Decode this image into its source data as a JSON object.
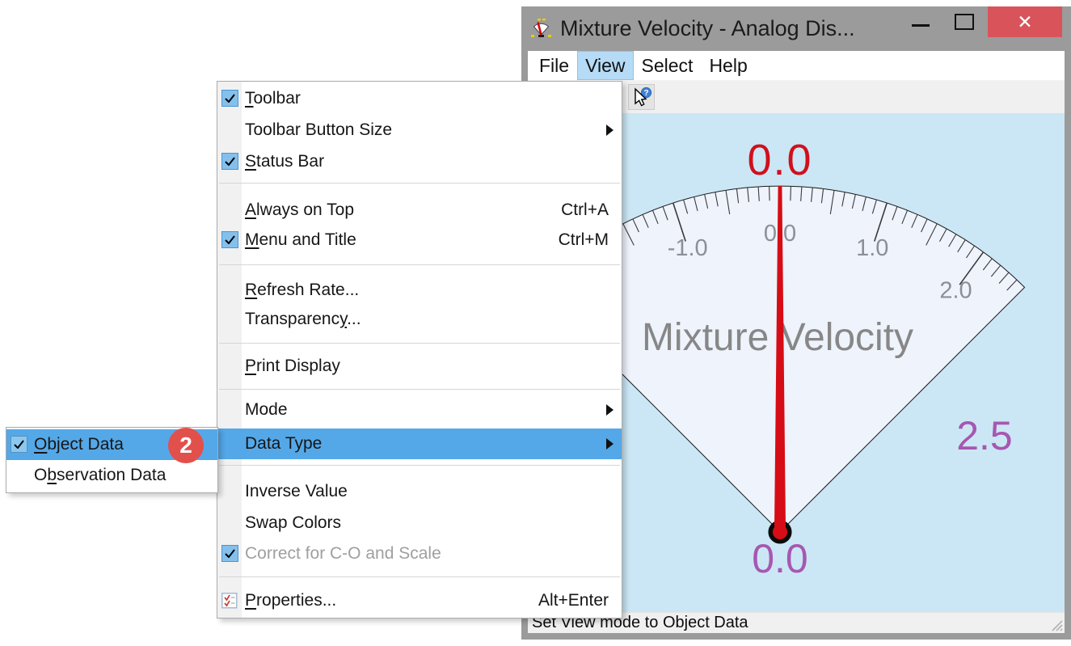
{
  "window": {
    "title": "Mixture Velocity - Analog Dis...",
    "app_icon": "analog-gauge-icon",
    "controls": {
      "minimize_icon": "minimize-icon",
      "maximize_icon": "maximize-icon",
      "close_icon": "close-icon",
      "close_glyph": "✕",
      "close_color": "#d9545a"
    }
  },
  "menubar": {
    "items": [
      {
        "label": "File",
        "active": false
      },
      {
        "label": "View",
        "active": true
      },
      {
        "label": "Select",
        "active": false
      },
      {
        "label": "Help",
        "active": false
      }
    ]
  },
  "toolbar": {
    "buttons": [
      {
        "name": "context-help",
        "icon": "help-cursor-icon"
      }
    ]
  },
  "view_menu": {
    "items": [
      {
        "label": "Toolbar",
        "underline": 0,
        "checked": true
      },
      {
        "label": "Toolbar Button Size",
        "submenu": true
      },
      {
        "label": "Status Bar",
        "underline": 0,
        "checked": true
      },
      {
        "type": "separator"
      },
      {
        "label": "Always on Top",
        "underline": 0,
        "shortcut": "Ctrl+A"
      },
      {
        "label": "Menu and Title",
        "underline": 0,
        "checked": true,
        "shortcut": "Ctrl+M"
      },
      {
        "type": "separator"
      },
      {
        "label": "Refresh Rate...",
        "underline": 0
      },
      {
        "label": "Transparency...",
        "underline": 11
      },
      {
        "type": "separator"
      },
      {
        "label": "Print Display",
        "underline": 0
      },
      {
        "type": "separator"
      },
      {
        "label": "Mode",
        "submenu": true
      },
      {
        "label": "Data Type",
        "submenu": true,
        "highlighted": true
      },
      {
        "type": "separator"
      },
      {
        "label": "Inverse Value"
      },
      {
        "label": "Swap Colors"
      },
      {
        "label": "Correct for C-O and Scale",
        "checked": true,
        "disabled": true
      },
      {
        "type": "separator"
      },
      {
        "label": "Properties...",
        "underline": 0,
        "icon": "properties-icon",
        "shortcut": "Alt+Enter"
      }
    ],
    "highlight_color": "#54a8e8"
  },
  "data_type_submenu": {
    "items": [
      {
        "label": "Object Data",
        "underline": 0,
        "checked": true,
        "highlighted": true,
        "badge": "2"
      },
      {
        "label": "Observation Data",
        "underline": 1
      }
    ],
    "badge_color": "#e2504c"
  },
  "gauge": {
    "title": "Mixture Velocity",
    "current_value": "0.0",
    "tick_labels": [
      {
        "value": -1,
        "label": "-1.0"
      },
      {
        "value": 0,
        "label": "0.0"
      },
      {
        "value": 1,
        "label": "1.0"
      },
      {
        "value": 2,
        "label": "2.0"
      }
    ],
    "scale_min_label": "0.0",
    "scale_max_label": "2.5",
    "needle_value": 0.0,
    "colors": {
      "background": "#cbe7f5",
      "face": "#eef3fc",
      "needle": "#d60d16",
      "value_text": "#d1101b",
      "range_labels": "#a757b1",
      "scale_text": "#8b9096",
      "title_text": "#878787"
    }
  },
  "statusbar": {
    "text": "Set View mode to Object Data"
  }
}
